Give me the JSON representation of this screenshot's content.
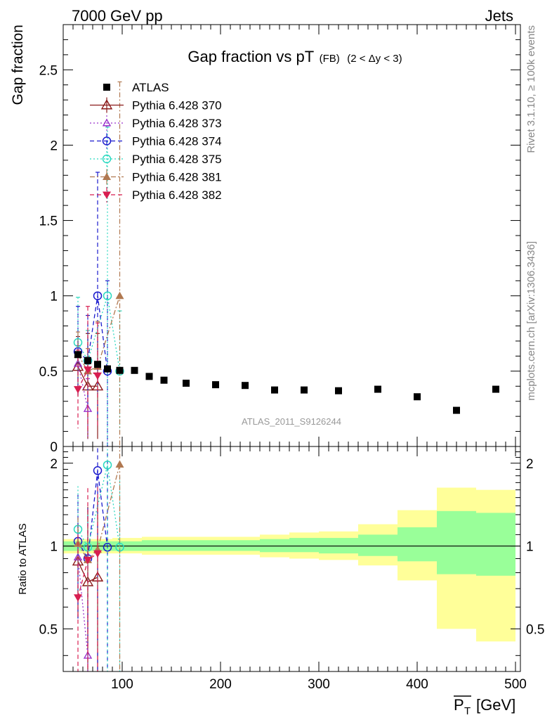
{
  "header": {
    "left": "7000 GeV pp",
    "right": "Jets"
  },
  "side": {
    "upper": "Rivet 3.1.10, ≥ 100k events",
    "lower": "mcplots.cern.ch [arXiv:1306.3436]"
  },
  "chart_data": {
    "type": "scatter",
    "title": {
      "main": "Gap fraction vs pT",
      "sub": "(FB)",
      "range": "(2 < Δy < 3)"
    },
    "watermark": "ATLAS_2011_S9126244",
    "xlabel": "P̅T [GeV]",
    "xlabel_text": "[GeV]",
    "xlim": [
      40,
      505
    ],
    "xticks": [
      100,
      200,
      300,
      400,
      500
    ],
    "xtick_labels": [
      "100",
      "200",
      "300",
      "400",
      "500"
    ],
    "top": {
      "ylabel": "Gap fraction",
      "ylim": [
        0,
        2.8
      ],
      "yticks": [
        0,
        0.5,
        1,
        1.5,
        2,
        2.5
      ],
      "ytick_labels": [
        "0",
        "0.5",
        "1",
        "1.5",
        "2",
        "2.5"
      ]
    },
    "ratio": {
      "ylabel": "Ratio to ATLAS",
      "log": true,
      "ylim": [
        0.35,
        2.3
      ],
      "yticks": [
        0.5,
        1,
        2
      ],
      "ytick_labels": [
        "0.5",
        "1",
        "2"
      ],
      "bands": [
        {
          "x0": 40,
          "x1": 60,
          "in": [
            0.96,
            1.04
          ],
          "out": [
            0.94,
            1.06
          ]
        },
        {
          "x0": 60,
          "x1": 70,
          "in": [
            0.96,
            1.04
          ],
          "out": [
            0.94,
            1.06
          ]
        },
        {
          "x0": 70,
          "x1": 80,
          "in": [
            0.96,
            1.04
          ],
          "out": [
            0.94,
            1.06
          ]
        },
        {
          "x0": 80,
          "x1": 90,
          "in": [
            0.96,
            1.04
          ],
          "out": [
            0.94,
            1.06
          ]
        },
        {
          "x0": 90,
          "x1": 105,
          "in": [
            0.96,
            1.04
          ],
          "out": [
            0.94,
            1.07
          ]
        },
        {
          "x0": 105,
          "x1": 120,
          "in": [
            0.96,
            1.04
          ],
          "out": [
            0.94,
            1.07
          ]
        },
        {
          "x0": 120,
          "x1": 135,
          "in": [
            0.96,
            1.05
          ],
          "out": [
            0.93,
            1.08
          ]
        },
        {
          "x0": 135,
          "x1": 150,
          "in": [
            0.96,
            1.05
          ],
          "out": [
            0.93,
            1.08
          ]
        },
        {
          "x0": 150,
          "x1": 180,
          "in": [
            0.96,
            1.05
          ],
          "out": [
            0.93,
            1.08
          ]
        },
        {
          "x0": 180,
          "x1": 210,
          "in": [
            0.96,
            1.05
          ],
          "out": [
            0.93,
            1.08
          ]
        },
        {
          "x0": 210,
          "x1": 240,
          "in": [
            0.96,
            1.05
          ],
          "out": [
            0.93,
            1.08
          ]
        },
        {
          "x0": 240,
          "x1": 270,
          "in": [
            0.95,
            1.06
          ],
          "out": [
            0.91,
            1.1
          ]
        },
        {
          "x0": 270,
          "x1": 300,
          "in": [
            0.95,
            1.07
          ],
          "out": [
            0.9,
            1.12
          ]
        },
        {
          "x0": 300,
          "x1": 340,
          "in": [
            0.94,
            1.07
          ],
          "out": [
            0.89,
            1.13
          ]
        },
        {
          "x0": 340,
          "x1": 380,
          "in": [
            0.92,
            1.1
          ],
          "out": [
            0.85,
            1.2
          ]
        },
        {
          "x0": 380,
          "x1": 420,
          "in": [
            0.88,
            1.17
          ],
          "out": [
            0.75,
            1.35
          ]
        },
        {
          "x0": 420,
          "x1": 460,
          "in": [
            0.79,
            1.34
          ],
          "out": [
            0.5,
            1.63
          ]
        },
        {
          "x0": 460,
          "x1": 500,
          "in": [
            0.78,
            1.32
          ],
          "out": [
            0.45,
            1.6
          ]
        }
      ]
    },
    "data": {
      "name": "ATLAS",
      "color": "#000000",
      "x": [
        55,
        65,
        75,
        85,
        97.5,
        112.5,
        127.5,
        142.5,
        165,
        195,
        225,
        255,
        285,
        320,
        360,
        400,
        440,
        480
      ],
      "y": [
        0.61,
        0.57,
        0.545,
        0.515,
        0.505,
        0.505,
        0.465,
        0.44,
        0.42,
        0.41,
        0.405,
        0.375,
        0.375,
        0.37,
        0.38,
        0.33,
        0.24,
        0.38
      ]
    },
    "series": [
      {
        "name": "Pythia 6.428 370",
        "color": "#8b1a1a",
        "marker": "triangle-open",
        "dash": "solid",
        "x": [
          55,
          65,
          75
        ],
        "y": [
          0.53,
          0.4,
          0.4
        ],
        "err": [
          0.2,
          0.35,
          0.35
        ],
        "ratio": [
          0.88,
          0.74,
          0.77
        ]
      },
      {
        "name": "Pythia 6.428 373",
        "color": "#9932cc",
        "marker": "triangle-open-small",
        "dash": "dot",
        "x": [
          55,
          65
        ],
        "y": [
          0.55,
          0.25
        ],
        "err": [
          0.12,
          0.2
        ],
        "ratio": [
          0.91,
          0.4
        ]
      },
      {
        "name": "Pythia 6.428 374",
        "color": "#1a1acd",
        "marker": "circle-open",
        "dash": "dash",
        "x": [
          55,
          65,
          75,
          85
        ],
        "y": [
          0.63,
          0.57,
          1.0,
          0.5
        ],
        "err": [
          0.3,
          0.3,
          0.82,
          0.6
        ],
        "ratio": [
          1.04,
          0.9,
          1.88,
          0.99
        ]
      },
      {
        "name": "Pythia 6.428 375",
        "color": "#2bd9c0",
        "marker": "circle-open",
        "dash": "dot",
        "x": [
          55,
          65,
          85,
          97.5
        ],
        "y": [
          0.69,
          0.57,
          1.0,
          0.5
        ],
        "err": [
          0.3,
          0.2,
          1.12,
          0.4
        ],
        "ratio": [
          1.15,
          0.99,
          1.97,
          0.99
        ]
      },
      {
        "name": "Pythia 6.428 381",
        "color": "#b07850",
        "marker": "triangle-filled",
        "dash": "dashdot",
        "x": [
          55,
          65,
          75,
          97.5
        ],
        "y": [
          0.61,
          0.5,
          0.53,
          1.0
        ],
        "err": [
          0.15,
          0.15,
          0.3,
          1.42
        ],
        "ratio": [
          1.02,
          0.89,
          0.97,
          1.98
        ]
      },
      {
        "name": "Pythia 6.428 382",
        "color": "#d81e50",
        "marker": "triangle-down-filled",
        "dash": "dash",
        "x": [
          55,
          65,
          75
        ],
        "y": [
          0.38,
          0.51,
          0.47
        ],
        "err": [
          0.26,
          0.42,
          0.35
        ],
        "ratio": [
          0.65,
          0.89,
          0.94
        ]
      }
    ],
    "band_colors": {
      "inner": "#99ff99",
      "outer": "#ffff99"
    }
  }
}
